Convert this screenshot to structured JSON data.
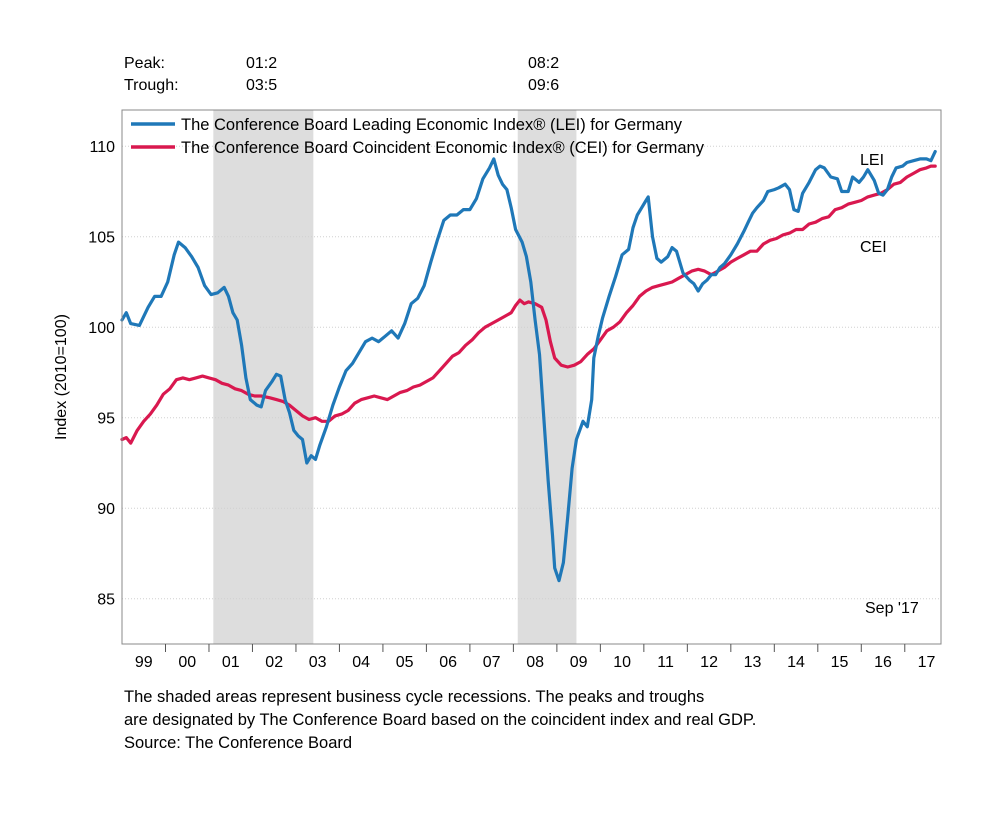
{
  "header": {
    "peak_label": "Peak:",
    "trough_label": "Trough:",
    "recessions": [
      {
        "peak": "01:2",
        "trough": "03:5"
      },
      {
        "peak": "08:2",
        "trough": "09:6"
      }
    ]
  },
  "colors": {
    "lei": "#1f78b8",
    "cei": "#d9184f",
    "recession_shade": "#dddddd",
    "grid": "#d0d0d0"
  },
  "chart_data": {
    "type": "line",
    "ylabel": "Index (2010=100)",
    "ylim": [
      82.5,
      112
    ],
    "xlim": [
      1999.0,
      2017.833
    ],
    "yticks": [
      85,
      90,
      95,
      100,
      105,
      110
    ],
    "xtick_labels": [
      "99",
      "00",
      "01",
      "02",
      "03",
      "04",
      "05",
      "06",
      "07",
      "08",
      "09",
      "10",
      "11",
      "12",
      "13",
      "14",
      "15",
      "16",
      "17"
    ],
    "grid": "horizontal dotted",
    "legend_position": "top-left",
    "recession_bands": [
      [
        2001.1,
        2003.4
      ],
      [
        2008.1,
        2009.45
      ]
    ],
    "series": [
      {
        "name": "The Conference Board Leading Economic Index® (LEI) for Germany",
        "label": "LEI",
        "points": [
          [
            1999.0,
            100.4
          ],
          [
            1999.1,
            100.8
          ],
          [
            1999.2,
            100.2
          ],
          [
            1999.4,
            100.1
          ],
          [
            1999.6,
            101.1
          ],
          [
            1999.75,
            101.7
          ],
          [
            1999.9,
            101.7
          ],
          [
            2000.05,
            102.5
          ],
          [
            2000.2,
            104.0
          ],
          [
            2000.3,
            104.7
          ],
          [
            2000.45,
            104.4
          ],
          [
            2000.6,
            103.9
          ],
          [
            2000.75,
            103.3
          ],
          [
            2000.9,
            102.3
          ],
          [
            2001.05,
            101.8
          ],
          [
            2001.2,
            101.9
          ],
          [
            2001.35,
            102.2
          ],
          [
            2001.45,
            101.7
          ],
          [
            2001.55,
            100.8
          ],
          [
            2001.65,
            100.4
          ],
          [
            2001.75,
            99.0
          ],
          [
            2001.85,
            97.2
          ],
          [
            2001.95,
            96.0
          ],
          [
            2002.1,
            95.7
          ],
          [
            2002.2,
            95.6
          ],
          [
            2002.3,
            96.5
          ],
          [
            2002.45,
            97.0
          ],
          [
            2002.55,
            97.4
          ],
          [
            2002.65,
            97.3
          ],
          [
            2002.75,
            96.0
          ],
          [
            2002.85,
            95.3
          ],
          [
            2002.95,
            94.3
          ],
          [
            2003.05,
            94.0
          ],
          [
            2003.15,
            93.8
          ],
          [
            2003.25,
            92.5
          ],
          [
            2003.35,
            92.9
          ],
          [
            2003.45,
            92.7
          ],
          [
            2003.55,
            93.5
          ],
          [
            2003.7,
            94.5
          ],
          [
            2003.85,
            95.7
          ],
          [
            2004.0,
            96.7
          ],
          [
            2004.15,
            97.6
          ],
          [
            2004.3,
            98.0
          ],
          [
            2004.45,
            98.6
          ],
          [
            2004.6,
            99.2
          ],
          [
            2004.75,
            99.4
          ],
          [
            2004.9,
            99.2
          ],
          [
            2005.05,
            99.5
          ],
          [
            2005.2,
            99.8
          ],
          [
            2005.35,
            99.4
          ],
          [
            2005.5,
            100.2
          ],
          [
            2005.65,
            101.3
          ],
          [
            2005.8,
            101.6
          ],
          [
            2005.95,
            102.3
          ],
          [
            2006.1,
            103.6
          ],
          [
            2006.25,
            104.8
          ],
          [
            2006.4,
            105.9
          ],
          [
            2006.55,
            106.2
          ],
          [
            2006.7,
            106.2
          ],
          [
            2006.85,
            106.5
          ],
          [
            2007.0,
            106.5
          ],
          [
            2007.15,
            107.1
          ],
          [
            2007.3,
            108.2
          ],
          [
            2007.45,
            108.8
          ],
          [
            2007.55,
            109.3
          ],
          [
            2007.65,
            108.4
          ],
          [
            2007.75,
            107.9
          ],
          [
            2007.85,
            107.6
          ],
          [
            2007.95,
            106.6
          ],
          [
            2008.05,
            105.4
          ],
          [
            2008.2,
            104.7
          ],
          [
            2008.3,
            103.9
          ],
          [
            2008.4,
            102.5
          ],
          [
            2008.5,
            100.4
          ],
          [
            2008.6,
            98.5
          ],
          [
            2008.7,
            95.0
          ],
          [
            2008.8,
            91.5
          ],
          [
            2008.9,
            88.5
          ],
          [
            2008.95,
            86.7
          ],
          [
            2009.05,
            86.0
          ],
          [
            2009.15,
            87.0
          ],
          [
            2009.25,
            89.5
          ],
          [
            2009.35,
            92.2
          ],
          [
            2009.45,
            93.8
          ],
          [
            2009.6,
            94.8
          ],
          [
            2009.7,
            94.5
          ],
          [
            2009.8,
            96.0
          ],
          [
            2009.85,
            98.3
          ],
          [
            2009.95,
            99.5
          ],
          [
            2010.05,
            100.5
          ],
          [
            2010.2,
            101.7
          ],
          [
            2010.35,
            102.8
          ],
          [
            2010.5,
            104.0
          ],
          [
            2010.65,
            104.3
          ],
          [
            2010.75,
            105.5
          ],
          [
            2010.85,
            106.2
          ],
          [
            2010.95,
            106.6
          ],
          [
            2011.05,
            107.0
          ],
          [
            2011.1,
            107.2
          ],
          [
            2011.2,
            105.0
          ],
          [
            2011.3,
            103.8
          ],
          [
            2011.4,
            103.6
          ],
          [
            2011.55,
            103.9
          ],
          [
            2011.65,
            104.4
          ],
          [
            2011.75,
            104.2
          ],
          [
            2011.9,
            103.0
          ],
          [
            2012.05,
            102.6
          ],
          [
            2012.15,
            102.4
          ],
          [
            2012.25,
            102.0
          ],
          [
            2012.35,
            102.4
          ],
          [
            2012.45,
            102.6
          ],
          [
            2012.55,
            102.9
          ],
          [
            2012.65,
            102.9
          ],
          [
            2012.75,
            103.3
          ],
          [
            2012.85,
            103.5
          ],
          [
            2013.0,
            104.0
          ],
          [
            2013.15,
            104.6
          ],
          [
            2013.3,
            105.3
          ],
          [
            2013.4,
            105.8
          ],
          [
            2013.5,
            106.3
          ],
          [
            2013.6,
            106.6
          ],
          [
            2013.75,
            107.0
          ],
          [
            2013.85,
            107.5
          ],
          [
            2014.0,
            107.6
          ],
          [
            2014.1,
            107.7
          ],
          [
            2014.25,
            107.9
          ],
          [
            2014.35,
            107.6
          ],
          [
            2014.45,
            106.5
          ],
          [
            2014.55,
            106.4
          ],
          [
            2014.65,
            107.4
          ],
          [
            2014.8,
            108.0
          ],
          [
            2014.95,
            108.7
          ],
          [
            2015.05,
            108.9
          ],
          [
            2015.15,
            108.8
          ],
          [
            2015.3,
            108.3
          ],
          [
            2015.45,
            108.2
          ],
          [
            2015.55,
            107.5
          ],
          [
            2015.7,
            107.5
          ],
          [
            2015.8,
            108.3
          ],
          [
            2015.95,
            108.0
          ],
          [
            2016.05,
            108.3
          ],
          [
            2016.15,
            108.7
          ],
          [
            2016.3,
            108.1
          ],
          [
            2016.4,
            107.4
          ],
          [
            2016.5,
            107.3
          ],
          [
            2016.6,
            107.6
          ],
          [
            2016.7,
            108.3
          ],
          [
            2016.8,
            108.8
          ],
          [
            2016.95,
            108.9
          ],
          [
            2017.05,
            109.1
          ],
          [
            2017.2,
            109.2
          ],
          [
            2017.35,
            109.3
          ],
          [
            2017.5,
            109.3
          ],
          [
            2017.6,
            109.2
          ],
          [
            2017.7,
            109.7
          ]
        ]
      },
      {
        "name": "The Conference Board Coincident Economic Index® (CEI) for Germany",
        "label": "CEI",
        "points": [
          [
            1999.0,
            93.8
          ],
          [
            1999.1,
            93.9
          ],
          [
            1999.2,
            93.6
          ],
          [
            1999.35,
            94.3
          ],
          [
            1999.5,
            94.8
          ],
          [
            1999.65,
            95.2
          ],
          [
            1999.8,
            95.7
          ],
          [
            1999.95,
            96.3
          ],
          [
            2000.1,
            96.6
          ],
          [
            2000.25,
            97.1
          ],
          [
            2000.4,
            97.2
          ],
          [
            2000.55,
            97.1
          ],
          [
            2000.7,
            97.2
          ],
          [
            2000.85,
            97.3
          ],
          [
            2001.0,
            97.2
          ],
          [
            2001.15,
            97.1
          ],
          [
            2001.3,
            96.9
          ],
          [
            2001.45,
            96.8
          ],
          [
            2001.6,
            96.6
          ],
          [
            2001.75,
            96.5
          ],
          [
            2001.9,
            96.3
          ],
          [
            2002.05,
            96.2
          ],
          [
            2002.2,
            96.2
          ],
          [
            2002.4,
            96.1
          ],
          [
            2002.55,
            96.0
          ],
          [
            2002.7,
            95.9
          ],
          [
            2002.85,
            95.7
          ],
          [
            2003.0,
            95.4
          ],
          [
            2003.15,
            95.1
          ],
          [
            2003.3,
            94.9
          ],
          [
            2003.45,
            95.0
          ],
          [
            2003.6,
            94.8
          ],
          [
            2003.75,
            94.8
          ],
          [
            2003.9,
            95.1
          ],
          [
            2004.05,
            95.2
          ],
          [
            2004.2,
            95.4
          ],
          [
            2004.35,
            95.8
          ],
          [
            2004.5,
            96.0
          ],
          [
            2004.65,
            96.1
          ],
          [
            2004.8,
            96.2
          ],
          [
            2004.95,
            96.1
          ],
          [
            2005.1,
            96.0
          ],
          [
            2005.25,
            96.2
          ],
          [
            2005.4,
            96.4
          ],
          [
            2005.55,
            96.5
          ],
          [
            2005.7,
            96.7
          ],
          [
            2005.85,
            96.8
          ],
          [
            2006.0,
            97.0
          ],
          [
            2006.15,
            97.2
          ],
          [
            2006.3,
            97.6
          ],
          [
            2006.45,
            98.0
          ],
          [
            2006.6,
            98.4
          ],
          [
            2006.75,
            98.6
          ],
          [
            2006.9,
            99.0
          ],
          [
            2007.05,
            99.3
          ],
          [
            2007.2,
            99.7
          ],
          [
            2007.35,
            100.0
          ],
          [
            2007.5,
            100.2
          ],
          [
            2007.65,
            100.4
          ],
          [
            2007.8,
            100.6
          ],
          [
            2007.95,
            100.8
          ],
          [
            2008.05,
            101.2
          ],
          [
            2008.15,
            101.5
          ],
          [
            2008.25,
            101.3
          ],
          [
            2008.35,
            101.4
          ],
          [
            2008.5,
            101.3
          ],
          [
            2008.65,
            101.1
          ],
          [
            2008.75,
            100.4
          ],
          [
            2008.85,
            99.2
          ],
          [
            2008.95,
            98.3
          ],
          [
            2009.1,
            97.9
          ],
          [
            2009.25,
            97.8
          ],
          [
            2009.4,
            97.9
          ],
          [
            2009.55,
            98.1
          ],
          [
            2009.7,
            98.5
          ],
          [
            2009.85,
            98.8
          ],
          [
            2010.0,
            99.3
          ],
          [
            2010.15,
            99.8
          ],
          [
            2010.3,
            100.0
          ],
          [
            2010.45,
            100.3
          ],
          [
            2010.6,
            100.8
          ],
          [
            2010.75,
            101.2
          ],
          [
            2010.9,
            101.7
          ],
          [
            2011.05,
            102.0
          ],
          [
            2011.2,
            102.2
          ],
          [
            2011.35,
            102.3
          ],
          [
            2011.5,
            102.4
          ],
          [
            2011.65,
            102.5
          ],
          [
            2011.8,
            102.7
          ],
          [
            2011.95,
            102.9
          ],
          [
            2012.1,
            103.1
          ],
          [
            2012.25,
            103.2
          ],
          [
            2012.4,
            103.1
          ],
          [
            2012.55,
            102.9
          ],
          [
            2012.7,
            103.1
          ],
          [
            2012.85,
            103.3
          ],
          [
            2013.0,
            103.6
          ],
          [
            2013.15,
            103.8
          ],
          [
            2013.3,
            104.0
          ],
          [
            2013.45,
            104.2
          ],
          [
            2013.6,
            104.2
          ],
          [
            2013.75,
            104.6
          ],
          [
            2013.9,
            104.8
          ],
          [
            2014.05,
            104.9
          ],
          [
            2014.2,
            105.1
          ],
          [
            2014.35,
            105.2
          ],
          [
            2014.5,
            105.4
          ],
          [
            2014.65,
            105.4
          ],
          [
            2014.8,
            105.7
          ],
          [
            2014.95,
            105.8
          ],
          [
            2015.1,
            106.0
          ],
          [
            2015.25,
            106.1
          ],
          [
            2015.4,
            106.5
          ],
          [
            2015.55,
            106.6
          ],
          [
            2015.7,
            106.8
          ],
          [
            2015.85,
            106.9
          ],
          [
            2016.0,
            107.0
          ],
          [
            2016.15,
            107.2
          ],
          [
            2016.3,
            107.3
          ],
          [
            2016.45,
            107.4
          ],
          [
            2016.6,
            107.6
          ],
          [
            2016.75,
            107.9
          ],
          [
            2016.9,
            108.0
          ],
          [
            2017.05,
            108.3
          ],
          [
            2017.2,
            108.5
          ],
          [
            2017.35,
            108.7
          ],
          [
            2017.5,
            108.8
          ],
          [
            2017.6,
            108.9
          ],
          [
            2017.7,
            108.9
          ]
        ]
      }
    ],
    "annotation": "Sep '17"
  },
  "footnote": {
    "line1": "The shaded areas represent business cycle recessions. The peaks and troughs",
    "line2": "are designated by The Conference Board based on the coincident index and real GDP.",
    "line3": "Source: The Conference Board"
  }
}
